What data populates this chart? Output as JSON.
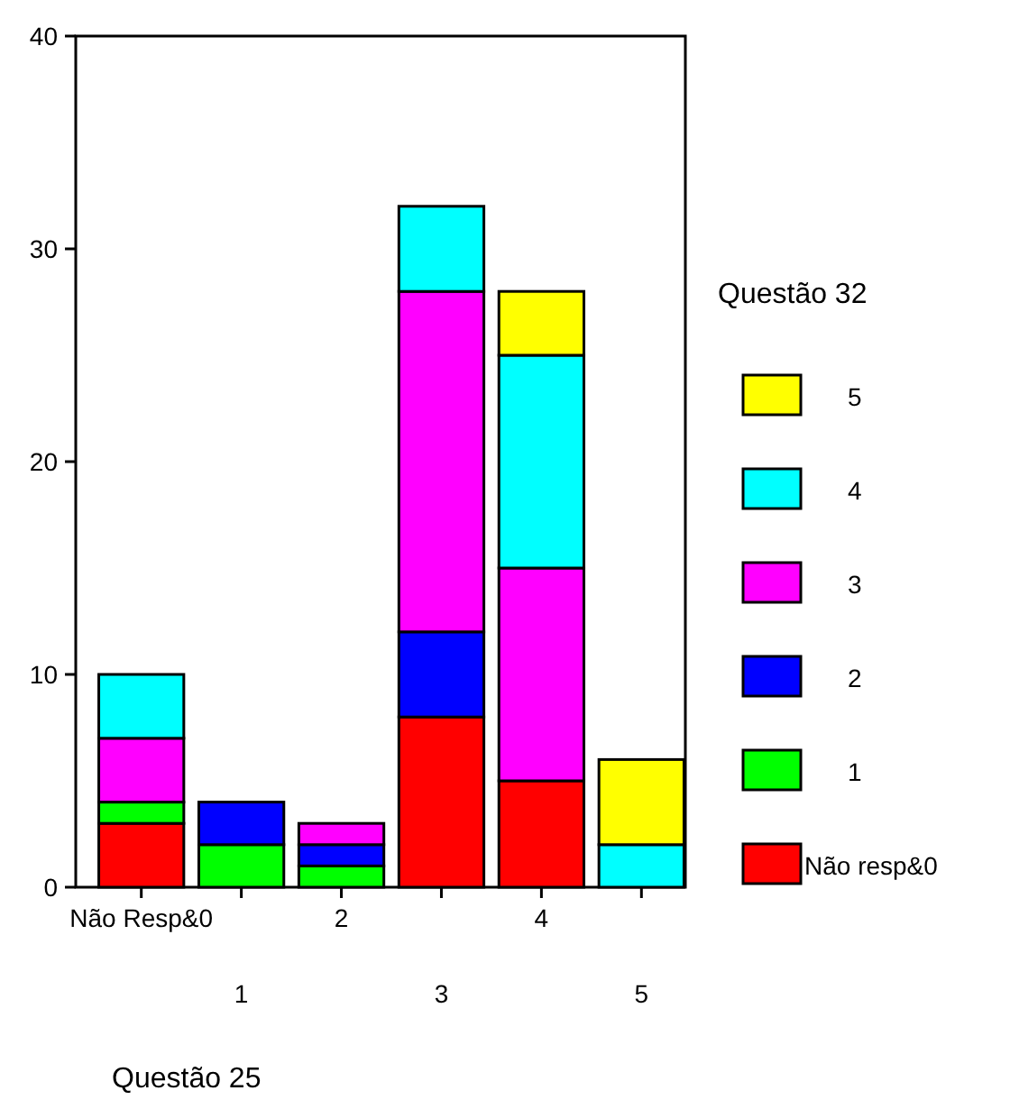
{
  "chart_data": {
    "type": "bar",
    "stacked": true,
    "xlabel": "Questão 25",
    "legend_title": "Questão 32",
    "legend": "right",
    "grid": false,
    "categories": [
      "Não Resp&0",
      "1",
      "2",
      "3",
      "4",
      "5"
    ],
    "ylim": [
      0,
      40
    ],
    "yticks": [
      0,
      10,
      20,
      30,
      40
    ],
    "series": [
      {
        "name": "Não resp&0",
        "color": "#ff0000",
        "values": [
          3,
          0,
          0,
          8,
          5,
          0
        ]
      },
      {
        "name": "1",
        "color": "#00ff00",
        "values": [
          1,
          2,
          1,
          0,
          0,
          0
        ]
      },
      {
        "name": "2",
        "color": "#0000ff",
        "values": [
          0,
          2,
          1,
          4,
          0,
          0
        ]
      },
      {
        "name": "3",
        "color": "#ff00ff",
        "values": [
          3,
          0,
          1,
          16,
          10,
          0
        ]
      },
      {
        "name": "4",
        "color": "#00ffff",
        "values": [
          3,
          0,
          0,
          4,
          10,
          2
        ]
      },
      {
        "name": "5",
        "color": "#ffff00",
        "values": [
          0,
          0,
          0,
          0,
          3,
          4
        ]
      }
    ]
  }
}
